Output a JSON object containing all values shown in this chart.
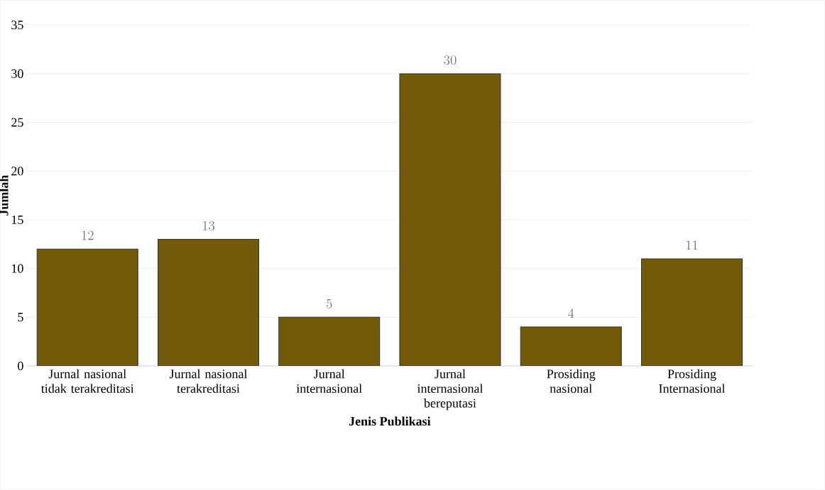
{
  "chart_data": {
    "type": "bar",
    "xlabel": "Jenis Publikasi",
    "ylabel": "Jumlah",
    "categories": [
      "Jurnal nasional tidak terakreditasi",
      "Jurnal nasional terakreditasi",
      "Jurnal internasional",
      "Jurnal internasional bereputasi",
      "Prosiding nasional",
      "Prosiding Internasional"
    ],
    "values": [
      12,
      13,
      5,
      30,
      4,
      11
    ],
    "color": "#725a0a",
    "ylim": [
      0,
      35
    ],
    "yticks": [
      0,
      5,
      10,
      15,
      20,
      25,
      30,
      35
    ],
    "grid": "y",
    "data_labels": true
  }
}
